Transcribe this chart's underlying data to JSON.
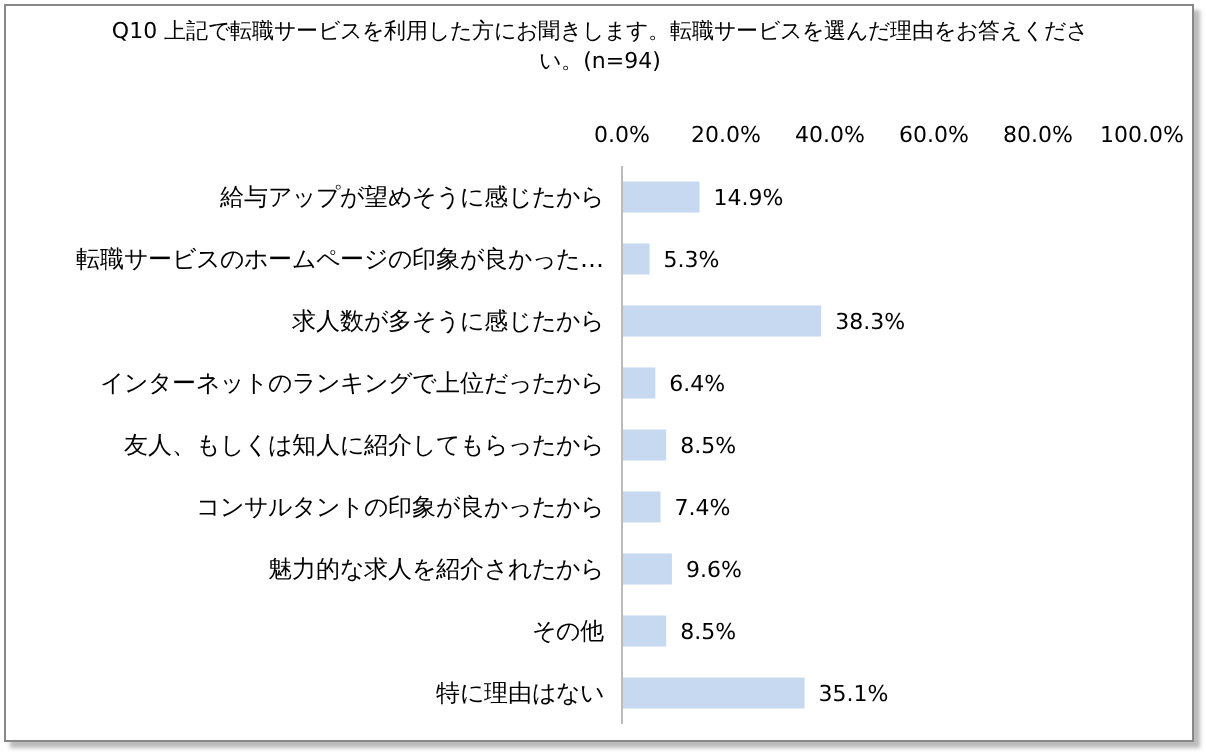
{
  "chart_data": {
    "type": "bar",
    "orientation": "horizontal",
    "title": "Q10 上記で転職サービスを利用した方にお聞きします。転職サービスを選んだ理由をお答えください。(n=94)",
    "categories": [
      "給与アップが望めそうに感じたから",
      "転職サービスのホームページの印象が良かった…",
      "求人数が多そうに感じたから",
      "インターネットのランキングで上位だったから",
      "友人、もしくは知人に紹介してもらったから",
      "コンサルタントの印象が良かったから",
      "魅力的な求人を紹介されたから",
      "その他",
      "特に理由はない"
    ],
    "values": [
      14.9,
      5.3,
      38.3,
      6.4,
      8.5,
      7.4,
      9.6,
      8.5,
      35.1
    ],
    "value_labels": [
      "14.9%",
      "5.3%",
      "38.3%",
      "6.4%",
      "8.5%",
      "7.4%",
      "9.6%",
      "8.5%",
      "35.1%"
    ],
    "color": "#c6d9f1",
    "xlim": [
      0,
      100
    ],
    "xticks": [
      {
        "value": 0,
        "label": "0.0%"
      },
      {
        "value": 20,
        "label": "20.0%"
      },
      {
        "value": 40,
        "label": "40.0%"
      },
      {
        "value": 60,
        "label": "60.0%"
      },
      {
        "value": 80,
        "label": "80.0%"
      },
      {
        "value": 100,
        "label": "100.0%"
      }
    ],
    "grid": false
  }
}
